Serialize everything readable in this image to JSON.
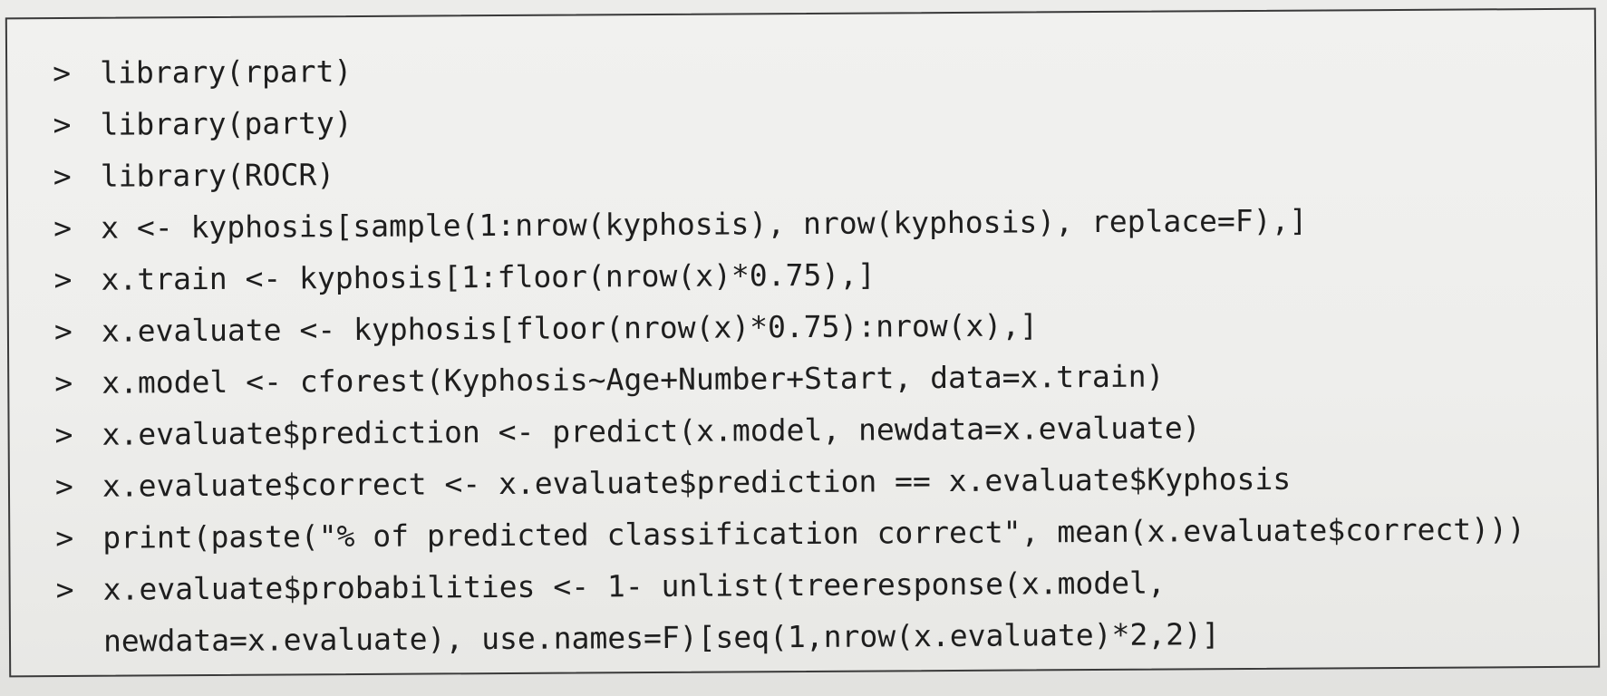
{
  "code": {
    "prompt": ">",
    "lines": [
      "library(rpart)",
      "library(party)",
      "library(ROCR)",
      "x <- kyphosis[sample(1:nrow(kyphosis), nrow(kyphosis), replace=F),]",
      "x.train <- kyphosis[1:floor(nrow(x)*0.75),]",
      "x.evaluate <- kyphosis[floor(nrow(x)*0.75):nrow(x),]",
      "x.model <- cforest(Kyphosis~Age+Number+Start, data=x.train)",
      "x.evaluate$prediction <- predict(x.model, newdata=x.evaluate)",
      "x.evaluate$correct <- x.evaluate$prediction == x.evaluate$Kyphosis",
      "print(paste(\"% of predicted classification correct\", mean(x.evaluate$correct)))",
      "x.evaluate$probabilities <- 1- unlist(treeresponse(x.model,"
    ],
    "continuation": "newdata=x.evaluate), use.names=F)[seq(1,nrow(x.evaluate)*2,2)]"
  }
}
